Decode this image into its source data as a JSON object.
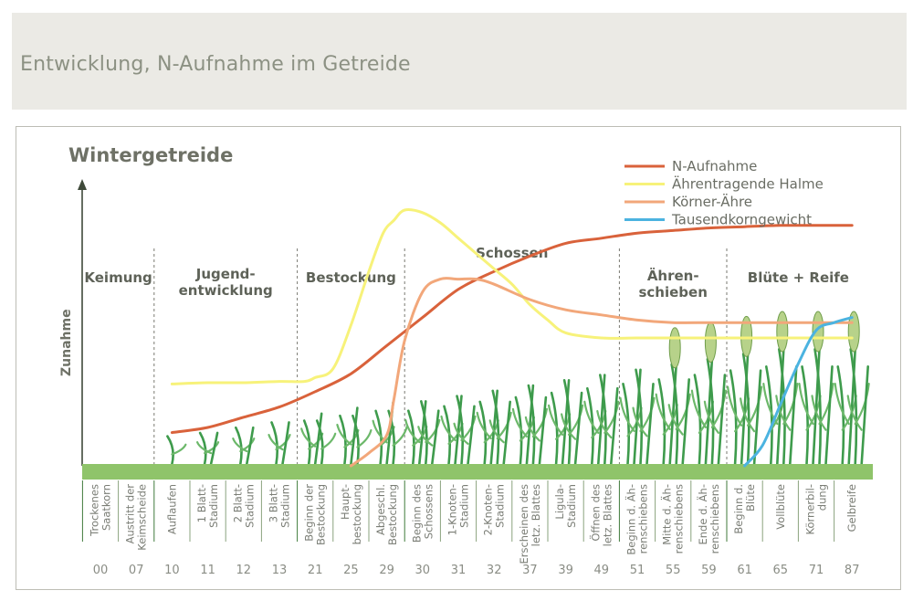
{
  "page": {
    "title": "Entwicklung, N-Aufnahme im Getreide"
  },
  "chart_data": {
    "type": "line",
    "title": "Wintergetreide",
    "ylabel": "Zunahme",
    "xlabel": "",
    "categories": [
      "00",
      "07",
      "10",
      "11",
      "12",
      "13",
      "21",
      "25",
      "29",
      "30",
      "31",
      "32",
      "37",
      "39",
      "49",
      "51",
      "55",
      "59",
      "61",
      "65",
      "71",
      "87"
    ],
    "stage_labels": [
      [
        "Trockenes",
        "Saatkorn"
      ],
      [
        "Austritt der",
        "Keimscheide"
      ],
      [
        "Auflaufen"
      ],
      [
        "1 Blatt-",
        "Stadium"
      ],
      [
        "2 Blatt-",
        "Stadium"
      ],
      [
        "3 Blatt-",
        "Stadium"
      ],
      [
        "Beginn der",
        "Bestockung"
      ],
      [
        "Haupt-",
        "bestockung"
      ],
      [
        "Abgeschl.",
        "Bestockung"
      ],
      [
        "Beginn des",
        "Schossens"
      ],
      [
        "1-Knoten-",
        "Stadium"
      ],
      [
        "2-Knoten-",
        "Stadium"
      ],
      [
        "Erscheinen des",
        "letz. Blattes"
      ],
      [
        "Ligula-",
        "Stadium"
      ],
      [
        "Öffnen des",
        "letz. Blattes"
      ],
      [
        "Beginn d. Äh-",
        "renschiebens"
      ],
      [
        "Mitte d. Äh-",
        "renschiebens"
      ],
      [
        "Ende d. Äh-",
        "renschiebens"
      ],
      [
        "Beginn d.",
        "Blüte"
      ],
      [
        "Vollblüte"
      ],
      [
        "Körnerbil-",
        "dung"
      ],
      [
        "Gelbreife"
      ]
    ],
    "phases": [
      {
        "label": [
          "Keimung"
        ],
        "from": "00",
        "to": "07"
      },
      {
        "label": [
          "Jugend-",
          "entwicklung"
        ],
        "from": "10",
        "to": "13"
      },
      {
        "label": [
          "Bestockung"
        ],
        "from": "21",
        "to": "29"
      },
      {
        "label": [
          "Schossen"
        ],
        "from": "30",
        "to": "49"
      },
      {
        "label": [
          "Ähren-",
          "schieben"
        ],
        "from": "51",
        "to": "59"
      },
      {
        "label": [
          "Blüte + Reife"
        ],
        "from": "61",
        "to": "87"
      }
    ],
    "ylim": [
      0,
      100
    ],
    "grid": false,
    "legend_position": "top-right",
    "series": [
      {
        "name": "N-Aufnahme",
        "color": "#d9623b",
        "x": [
          2,
          3,
          4,
          5,
          6,
          7,
          8,
          9,
          10,
          11,
          12,
          13,
          14,
          15,
          16,
          17,
          18,
          19,
          20,
          21
        ],
        "y": [
          13,
          15,
          19,
          23,
          29,
          36,
          47,
          58,
          69,
          76,
          82,
          87,
          89,
          91,
          92,
          93,
          93.5,
          94,
          94,
          94
        ]
      },
      {
        "name": "Ährentragende Halme",
        "color": "#f7f27a",
        "x": [
          2,
          3,
          4,
          5,
          5.7,
          6,
          6.5,
          7,
          7.5,
          7.9,
          8.2,
          8.5,
          9,
          9.5,
          10,
          10.5,
          11,
          11.5,
          12,
          12.5,
          13,
          14,
          15,
          16,
          17,
          18,
          19,
          20,
          21
        ],
        "y": [
          32,
          32.5,
          32.5,
          33,
          33,
          34.5,
          38,
          55,
          76,
          91,
          96,
          100,
          99,
          95,
          89,
          83,
          77,
          71,
          63,
          57,
          52,
          50,
          50,
          50,
          50,
          50,
          50,
          50,
          50
        ]
      },
      {
        "name": "Körner-Ähre",
        "color": "#f2a77a",
        "x": [
          7,
          7.5,
          8,
          8.2,
          8.5,
          9,
          9.5,
          10,
          10.5,
          11,
          12,
          13,
          14,
          15,
          16,
          17,
          18,
          19,
          20,
          21
        ],
        "y": [
          0,
          5,
          12,
          26,
          49,
          68,
          73,
          73,
          73,
          71,
          65,
          61,
          59,
          57,
          56,
          56,
          56,
          56,
          56,
          56
        ]
      },
      {
        "name": "Tausendkorngewicht",
        "color": "#4bb3e0",
        "x": [
          18,
          18.5,
          19,
          19.5,
          20,
          20.5,
          21
        ],
        "y": [
          0,
          8,
          24,
          40,
          53,
          56,
          58
        ]
      }
    ]
  }
}
